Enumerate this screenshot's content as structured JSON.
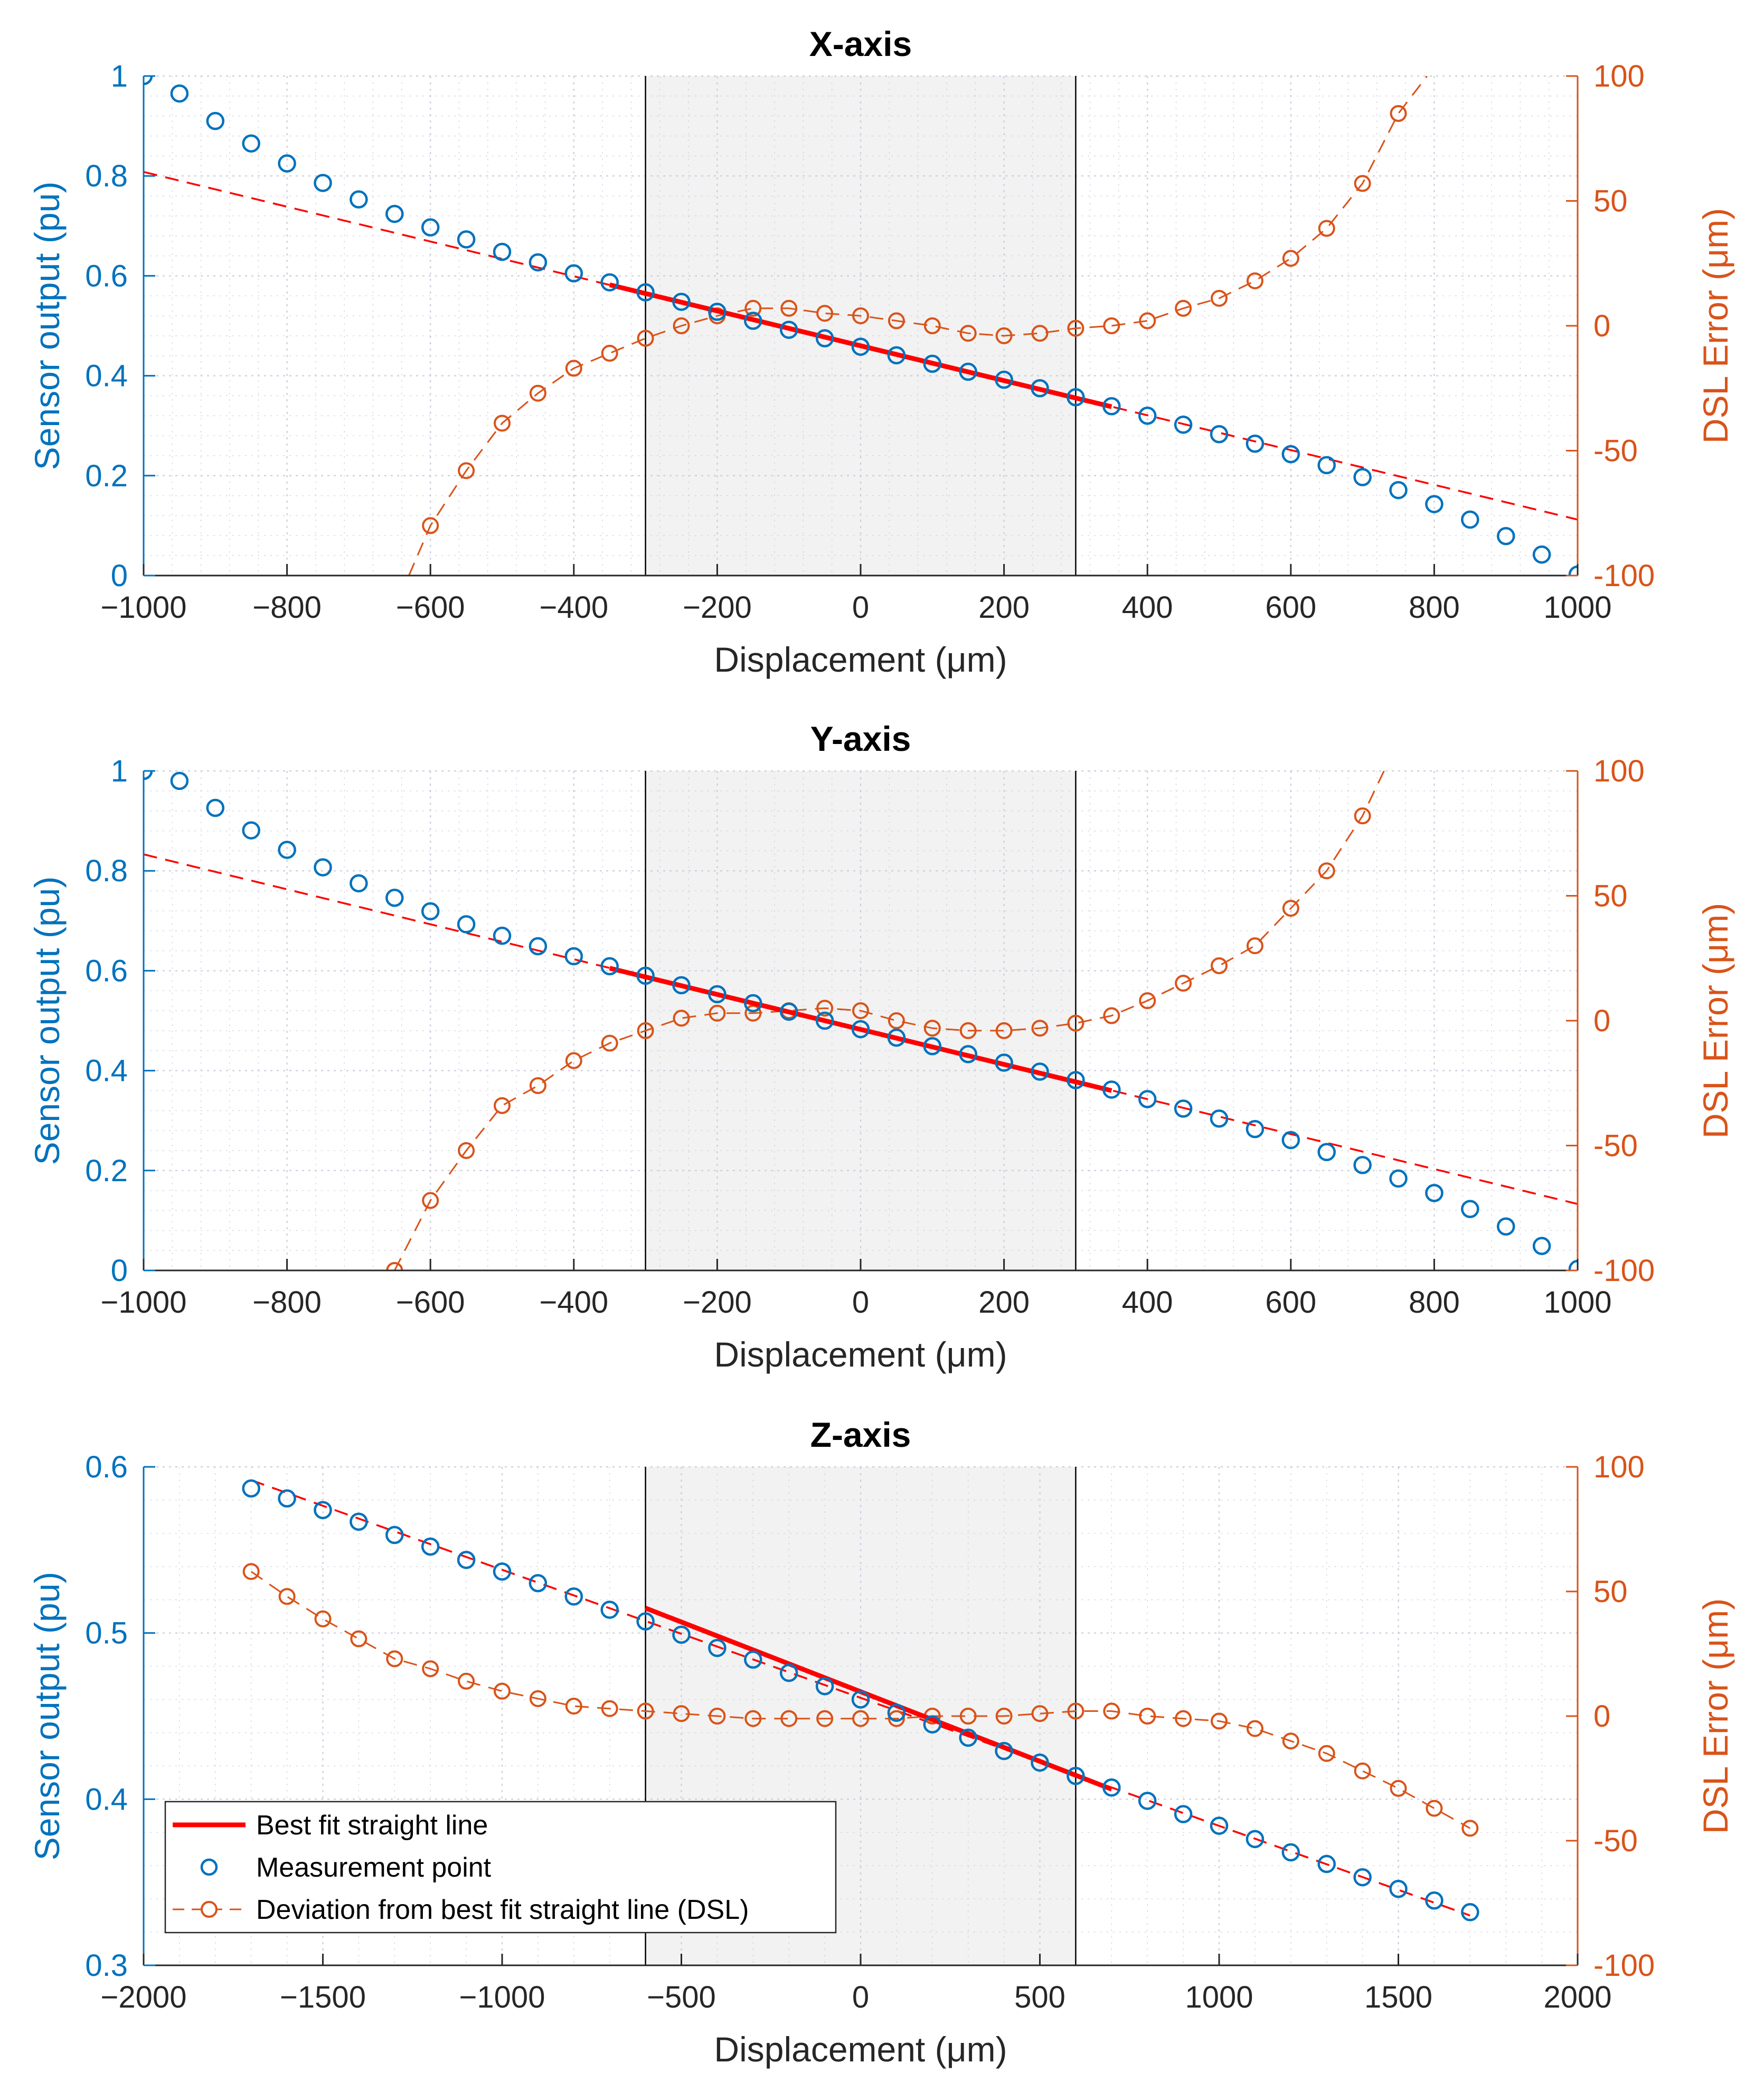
{
  "colors": {
    "sensor": "#0072BD",
    "dsl": "#D95319",
    "fit": "#FF0000",
    "band": "#F2F2F2",
    "grid": "#C9CCDD",
    "axes": "#262626"
  },
  "legend": {
    "placement": "bottom-left",
    "items": [
      {
        "label": "Best fit straight line",
        "style": "fit"
      },
      {
        "label": "Measurement point",
        "style": "sensor"
      },
      {
        "label": "Deviation from best fit straight line (DSL)",
        "style": "dsl"
      }
    ]
  },
  "chart_data": [
    {
      "type": "line",
      "title": "X-axis",
      "xlabel": "Displacement (μm)",
      "ylabel": "Sensor output (pu)",
      "y2label": "DSL Error (μm)",
      "xlim": [
        -1000,
        1000
      ],
      "ylim": [
        0,
        1
      ],
      "y2lim": [
        -100,
        100
      ],
      "xticks": [
        -1000,
        -800,
        -600,
        -400,
        -200,
        0,
        200,
        400,
        600,
        800,
        1000
      ],
      "xtick_labels": [
        "−1000",
        "−800",
        "−600",
        "−400",
        "−200",
        "0",
        "200",
        "400",
        "600",
        "800",
        "1000"
      ],
      "yticks": [
        0,
        0.2,
        0.4,
        0.6,
        0.8,
        1
      ],
      "ytick_labels": [
        "0",
        "0.2",
        "0.4",
        "0.6",
        "0.8",
        "1"
      ],
      "y2ticks": [
        -100,
        -50,
        0,
        50,
        100
      ],
      "y2tick_labels": [
        "-100",
        "-50",
        "0",
        "50",
        "100"
      ],
      "grid": true,
      "linear_range": [
        -300,
        300
      ],
      "series": [
        {
          "name": "Measurement point",
          "axis": "left",
          "style": "markers",
          "x": [
            -1000,
            -950,
            -900,
            -850,
            -800,
            -750,
            -700,
            -650,
            -600,
            -550,
            -500,
            -450,
            -400,
            -350,
            -300,
            -250,
            -200,
            -150,
            -100,
            -50,
            0,
            50,
            100,
            150,
            200,
            250,
            300,
            350,
            400,
            450,
            500,
            550,
            600,
            650,
            700,
            750,
            800,
            850,
            900,
            950,
            1000
          ],
          "y": [
            1.0,
            0.965,
            0.91,
            0.865,
            0.825,
            0.786,
            0.753,
            0.724,
            0.697,
            0.673,
            0.648,
            0.627,
            0.605,
            0.587,
            0.567,
            0.548,
            0.528,
            0.51,
            0.492,
            0.475,
            0.458,
            0.441,
            0.424,
            0.408,
            0.392,
            0.375,
            0.357,
            0.339,
            0.32,
            0.302,
            0.283,
            0.264,
            0.243,
            0.221,
            0.197,
            0.171,
            0.143,
            0.112,
            0.079,
            0.042,
            0.002
          ]
        },
        {
          "name": "Best fit straight line",
          "axis": "left",
          "style": "fit",
          "x": [
            -350,
            350
          ],
          "y": [
            0.582,
            0.338
          ],
          "extension_x": [
            -1000,
            1000
          ],
          "extension_y": [
            0.808,
            0.112
          ]
        },
        {
          "name": "Deviation from best fit straight line (DSL)",
          "axis": "right",
          "style": "dsl",
          "x": [
            -600,
            -550,
            -500,
            -450,
            -400,
            -350,
            -300,
            -250,
            -200,
            -150,
            -100,
            -50,
            0,
            50,
            100,
            150,
            200,
            250,
            300,
            350,
            400,
            450,
            500,
            550,
            600,
            650,
            700,
            750
          ],
          "y": [
            -80,
            -58,
            -39,
            -27,
            -17,
            -11,
            -5,
            0,
            4,
            7,
            7,
            5,
            4,
            2,
            0,
            -3,
            -4,
            -3,
            -1,
            0,
            2,
            7,
            11,
            18,
            27,
            39,
            57,
            85
          ],
          "curve_x": [
            -630,
            -600,
            -550,
            -500,
            -450,
            -400,
            -350,
            -300,
            -250,
            -200,
            -150,
            -100,
            -50,
            0,
            50,
            100,
            150,
            200,
            250,
            300,
            350,
            400,
            450,
            500,
            550,
            600,
            650,
            700,
            750,
            790
          ],
          "curve_y": [
            -100,
            -80,
            -58,
            -39,
            -27,
            -17,
            -11,
            -5,
            0,
            4,
            7,
            7,
            5,
            4,
            2,
            0,
            -3,
            -4,
            -3,
            -1,
            0,
            2,
            7,
            11,
            18,
            27,
            39,
            57,
            85,
            100
          ]
        }
      ]
    },
    {
      "type": "line",
      "title": "Y-axis",
      "xlabel": "Displacement (μm)",
      "ylabel": "Sensor output (pu)",
      "y2label": "DSL Error (μm)",
      "xlim": [
        -1000,
        1000
      ],
      "ylim": [
        0,
        1
      ],
      "y2lim": [
        -100,
        100
      ],
      "xticks": [
        -1000,
        -800,
        -600,
        -400,
        -200,
        0,
        200,
        400,
        600,
        800,
        1000
      ],
      "xtick_labels": [
        "−1000",
        "−800",
        "−600",
        "−400",
        "−200",
        "0",
        "200",
        "400",
        "600",
        "800",
        "1000"
      ],
      "yticks": [
        0,
        0.2,
        0.4,
        0.6,
        0.8,
        1
      ],
      "ytick_labels": [
        "0",
        "0.2",
        "0.4",
        "0.6",
        "0.8",
        "1"
      ],
      "y2ticks": [
        -100,
        -50,
        0,
        50,
        100
      ],
      "y2tick_labels": [
        "-100",
        "-50",
        "0",
        "50",
        "100"
      ],
      "grid": true,
      "linear_range": [
        -300,
        300
      ],
      "series": [
        {
          "name": "Measurement point",
          "axis": "left",
          "style": "markers",
          "x": [
            -1000,
            -950,
            -900,
            -850,
            -800,
            -750,
            -700,
            -650,
            -600,
            -550,
            -500,
            -450,
            -400,
            -350,
            -300,
            -250,
            -200,
            -150,
            -100,
            -50,
            0,
            50,
            100,
            150,
            200,
            250,
            300,
            350,
            400,
            450,
            500,
            550,
            600,
            650,
            700,
            750,
            800,
            850,
            900,
            950,
            1000
          ],
          "y": [
            1.0,
            0.98,
            0.926,
            0.881,
            0.842,
            0.807,
            0.775,
            0.746,
            0.719,
            0.693,
            0.67,
            0.649,
            0.629,
            0.609,
            0.59,
            0.571,
            0.553,
            0.535,
            0.518,
            0.5,
            0.483,
            0.466,
            0.449,
            0.433,
            0.416,
            0.398,
            0.381,
            0.362,
            0.343,
            0.324,
            0.304,
            0.283,
            0.261,
            0.237,
            0.211,
            0.184,
            0.155,
            0.123,
            0.088,
            0.049,
            0.003
          ]
        },
        {
          "name": "Best fit straight line",
          "axis": "left",
          "style": "fit",
          "x": [
            -350,
            350
          ],
          "y": [
            0.605,
            0.36
          ],
          "extension_x": [
            -1000,
            1000
          ],
          "extension_y": [
            0.833,
            0.133
          ]
        },
        {
          "name": "Deviation from best fit straight line (DSL)",
          "axis": "right",
          "style": "dsl",
          "x": [
            -650,
            -600,
            -550,
            -500,
            -450,
            -400,
            -350,
            -300,
            -250,
            -200,
            -150,
            -100,
            -50,
            0,
            50,
            100,
            150,
            200,
            250,
            300,
            350,
            400,
            450,
            500,
            550,
            600,
            650,
            700
          ],
          "y": [
            -100,
            -72,
            -52,
            -34,
            -26,
            -16,
            -9,
            -4,
            1,
            3,
            3,
            4,
            5,
            4,
            0,
            -3,
            -4,
            -4,
            -3,
            -1,
            2,
            8,
            15,
            22,
            30,
            45,
            60,
            82
          ],
          "curve_x": [
            -650,
            -600,
            -550,
            -500,
            -450,
            -400,
            -350,
            -300,
            -250,
            -200,
            -150,
            -100,
            -50,
            0,
            50,
            100,
            150,
            200,
            250,
            300,
            350,
            400,
            450,
            500,
            550,
            600,
            650,
            700,
            730
          ],
          "curve_y": [
            -100,
            -72,
            -52,
            -34,
            -26,
            -16,
            -9,
            -4,
            1,
            3,
            3,
            4,
            5,
            4,
            0,
            -3,
            -4,
            -4,
            -3,
            -1,
            2,
            8,
            15,
            22,
            30,
            45,
            60,
            82,
            100
          ]
        }
      ]
    },
    {
      "type": "line",
      "title": "Z-axis",
      "xlabel": "Displacement (μm)",
      "ylabel": "Sensor output (pu)",
      "y2label": "DSL Error (μm)",
      "xlim": [
        -2000,
        2000
      ],
      "ylim": [
        0.3,
        0.6
      ],
      "y2lim": [
        -100,
        100
      ],
      "xticks": [
        -2000,
        -1500,
        -1000,
        -500,
        0,
        500,
        1000,
        1500,
        2000
      ],
      "xtick_labels": [
        "−2000",
        "−1500",
        "−1000",
        "−500",
        "0",
        "500",
        "1000",
        "1500",
        "2000"
      ],
      "yticks": [
        0.3,
        0.4,
        0.5,
        0.6
      ],
      "ytick_labels": [
        "0.3",
        "0.4",
        "0.5",
        "0.6"
      ],
      "y2ticks": [
        -100,
        -50,
        0,
        50,
        100
      ],
      "y2tick_labels": [
        "-100",
        "-50",
        "0",
        "50",
        "100"
      ],
      "grid": true,
      "linear_range": [
        -600,
        600
      ],
      "series": [
        {
          "name": "Measurement point",
          "axis": "left",
          "style": "markers",
          "x": [
            -1700,
            -1600,
            -1500,
            -1400,
            -1300,
            -1200,
            -1100,
            -1000,
            -900,
            -800,
            -700,
            -600,
            -500,
            -400,
            -300,
            -200,
            -100,
            0,
            100,
            200,
            300,
            400,
            500,
            600,
            700,
            800,
            900,
            1000,
            1100,
            1200,
            1300,
            1400,
            1500,
            1600,
            1700
          ],
          "y": [
            0.587,
            0.581,
            0.574,
            0.567,
            0.559,
            0.552,
            0.544,
            0.537,
            0.53,
            0.522,
            0.514,
            0.507,
            0.499,
            0.491,
            0.484,
            0.476,
            0.468,
            0.46,
            0.452,
            0.445,
            0.437,
            0.429,
            0.422,
            0.414,
            0.407,
            0.399,
            0.391,
            0.384,
            0.376,
            0.368,
            0.361,
            0.353,
            0.346,
            0.339,
            0.332
          ]
        },
        {
          "name": "Best fit straight line",
          "axis": "left",
          "style": "fit",
          "x": [
            -600,
            700
          ],
          "y": [
            0.515,
            0.406
          ],
          "extension_x": [
            -1700,
            1700
          ],
          "extension_y": [
            0.592,
            0.33
          ]
        },
        {
          "name": "Deviation from best fit straight line (DSL)",
          "axis": "right",
          "style": "dsl",
          "x": [
            -1700,
            -1600,
            -1500,
            -1400,
            -1300,
            -1200,
            -1100,
            -1000,
            -900,
            -800,
            -700,
            -600,
            -500,
            -400,
            -300,
            -200,
            -100,
            0,
            100,
            200,
            300,
            400,
            500,
            600,
            700,
            800,
            900,
            1000,
            1100,
            1200,
            1300,
            1400,
            1500,
            1600,
            1700
          ],
          "y": [
            58,
            48,
            39,
            31,
            23,
            19,
            14,
            10,
            7,
            4,
            3,
            2,
            1,
            0,
            -1,
            -1,
            -1,
            -1,
            -1,
            0,
            0,
            0,
            1,
            2,
            2,
            0,
            -1,
            -2,
            -5,
            -10,
            -15,
            -22,
            -29,
            -37,
            -45
          ]
        }
      ]
    }
  ]
}
